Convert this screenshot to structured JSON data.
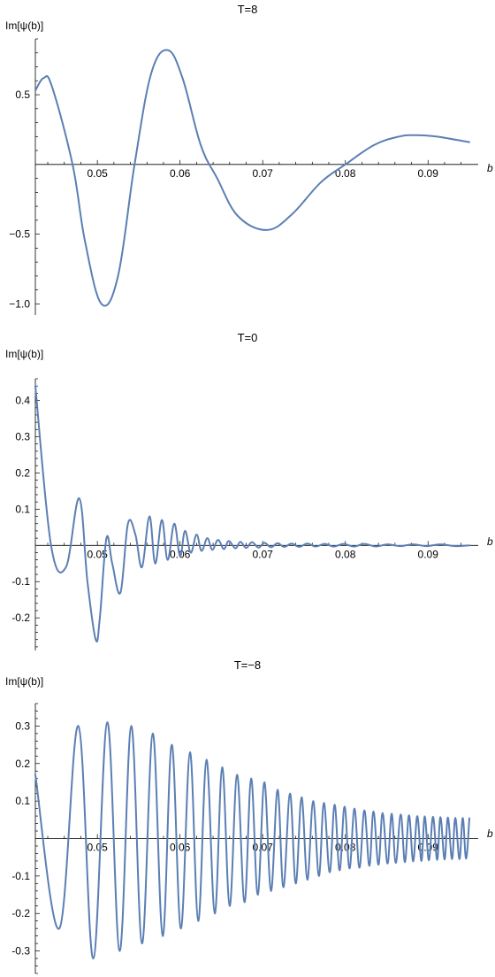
{
  "chart_data": [
    {
      "type": "line",
      "title": "T=8",
      "xlabel": "b",
      "ylabel": "Im[ψ(b)]",
      "xlim": [
        0.0425,
        0.095
      ],
      "ylim": [
        -1.08,
        0.9
      ],
      "xticks": [
        0.05,
        0.06,
        0.07,
        0.08,
        0.09
      ],
      "xtick_labels": [
        "0.05",
        "0.06",
        "0.07",
        "0.08",
        "0.09"
      ],
      "yticks": [
        -1.0,
        -0.5,
        0.5
      ],
      "ytick_labels": [
        "−1.0",
        "−0.5",
        "0.5"
      ],
      "series": [
        {
          "x": [
            0.0425,
            0.0435,
            0.0445,
            0.047,
            0.0485,
            0.0505,
            0.0525,
            0.0545,
            0.0565,
            0.0585,
            0.0603,
            0.0625,
            0.0645,
            0.067,
            0.0705,
            0.0735,
            0.077,
            0.08,
            0.0835,
            0.0865,
            0.0885,
            0.091,
            0.095
          ],
          "y": [
            0.53,
            0.62,
            0.56,
            0.0,
            -0.55,
            -1.0,
            -0.8,
            0.0,
            0.65,
            0.82,
            0.62,
            0.14,
            -0.1,
            -0.37,
            -0.47,
            -0.36,
            -0.13,
            0.0,
            0.14,
            0.2,
            0.21,
            0.2,
            0.16
          ]
        }
      ],
      "grid": false,
      "color": "#5b7fb4"
    },
    {
      "type": "line",
      "title": "T=0",
      "xlabel": "b",
      "ylabel": "Im[ψ(b)]",
      "xlim": [
        0.0425,
        0.095
      ],
      "ylim": [
        -0.29,
        0.46
      ],
      "xticks": [
        0.05,
        0.06,
        0.07,
        0.08,
        0.09
      ],
      "xtick_labels": [
        "0.05",
        "0.06",
        "0.07",
        "0.08",
        "0.09"
      ],
      "yticks": [
        -0.2,
        -0.1,
        0.1,
        0.2,
        0.3,
        0.4
      ],
      "ytick_labels": [
        "-0.2",
        "-0.1",
        "0.1",
        "0.2",
        "0.3",
        "0.4"
      ],
      "series": [
        {
          "x": [
            0.0425,
            0.0444,
            0.0462,
            0.0478,
            0.0488,
            0.0498,
            0.0503,
            0.0511,
            0.0518,
            0.0528,
            0.0537,
            0.0546,
            0.0554,
            0.0563,
            0.057,
            0.0578,
            0.0585,
            0.0593,
            0.06,
            0.0606,
            0.0613,
            0.062,
            0.0626,
            0.0633,
            0.0639,
            0.0646,
            0.0653,
            0.0659,
            0.0667,
            0.0673,
            0.068,
            0.0687,
            0.0695,
            0.0702,
            0.071,
            0.0718,
            0.0726,
            0.0735,
            0.0744,
            0.0754,
            0.0764,
            0.0775,
            0.0786,
            0.0798,
            0.081,
            0.0823,
            0.0837,
            0.0851,
            0.0866,
            0.0882,
            0.0898,
            0.0915,
            0.0933,
            0.095
          ],
          "y": [
            0.44,
            0.0,
            -0.06,
            0.13,
            -0.1,
            -0.26,
            -0.2,
            0.02,
            -0.05,
            -0.13,
            0.06,
            0.03,
            -0.06,
            0.08,
            -0.05,
            0.07,
            -0.04,
            0.06,
            -0.03,
            0.04,
            -0.02,
            0.03,
            -0.015,
            0.02,
            -0.012,
            0.015,
            -0.01,
            0.012,
            -0.008,
            0.01,
            -0.007,
            0.009,
            -0.006,
            0.007,
            -0.005,
            0.006,
            -0.004,
            0.005,
            -0.004,
            0.005,
            -0.003,
            0.004,
            -0.003,
            0.004,
            -0.003,
            0.004,
            -0.003,
            0.003,
            -0.002,
            0.003,
            -0.002,
            0.003,
            -0.002,
            0.0
          ]
        }
      ],
      "grid": false,
      "color": "#5b7fb4"
    },
    {
      "type": "line",
      "title": "T=−8",
      "xlabel": "b",
      "ylabel": "Im[ψ(b)]",
      "xlim": [
        0.0425,
        0.095
      ],
      "ylim": [
        -0.36,
        0.36
      ],
      "xticks": [
        0.05,
        0.06,
        0.07,
        0.08,
        0.09
      ],
      "xtick_labels": [
        "0.05",
        "0.06",
        "0.07",
        "0.08",
        "0.09"
      ],
      "yticks": [
        -0.3,
        -0.2,
        -0.1,
        0.1,
        0.2,
        0.3
      ],
      "ytick_labels": [
        "-0.3",
        "-0.2",
        "-0.1",
        "0.1",
        "0.2",
        "0.3"
      ],
      "series": [
        {
          "x": [
            0.0425,
            0.0454,
            0.0477,
            0.0495,
            0.0512,
            0.0527,
            0.0541,
            0.0554,
            0.0567,
            0.0579,
            0.059,
            0.0601,
            0.0612,
            0.0622,
            0.0632,
            0.0642,
            0.0651,
            0.066,
            0.0669,
            0.0678,
            0.0686,
            0.0694,
            0.0702,
            0.071,
            0.0718,
            0.0725,
            0.0733,
            0.074,
            0.0747,
            0.0754,
            0.0761,
            0.0768,
            0.0774,
            0.0781,
            0.0787,
            0.0793,
            0.0799,
            0.0805,
            0.0811,
            0.0817,
            0.0823,
            0.0829,
            0.0834,
            0.084,
            0.0845,
            0.0851,
            0.0856,
            0.0861,
            0.0867,
            0.0872,
            0.0877,
            0.0882,
            0.0887,
            0.0892,
            0.0896,
            0.0901,
            0.0906,
            0.0911,
            0.0915,
            0.092,
            0.0924,
            0.0929,
            0.0933,
            0.0938,
            0.0942,
            0.0946,
            0.095
          ],
          "y": [
            0.17,
            -0.24,
            0.3,
            -0.32,
            0.31,
            -0.3,
            0.3,
            -0.28,
            0.28,
            -0.26,
            0.25,
            -0.24,
            0.23,
            -0.22,
            0.21,
            -0.2,
            0.19,
            -0.18,
            0.17,
            -0.17,
            0.16,
            -0.15,
            0.15,
            -0.14,
            0.13,
            -0.13,
            0.12,
            -0.12,
            0.11,
            -0.11,
            0.1,
            -0.1,
            0.095,
            -0.09,
            0.09,
            -0.085,
            0.085,
            -0.08,
            0.08,
            -0.078,
            0.075,
            -0.073,
            0.072,
            -0.07,
            0.068,
            -0.067,
            0.066,
            -0.065,
            0.064,
            -0.063,
            0.062,
            -0.061,
            0.06,
            -0.06,
            0.059,
            -0.058,
            0.058,
            -0.057,
            0.057,
            -0.056,
            0.056,
            -0.055,
            0.055,
            -0.055,
            0.055,
            -0.054,
            0.054
          ]
        }
      ],
      "grid": false,
      "color": "#5b7fb4"
    }
  ]
}
